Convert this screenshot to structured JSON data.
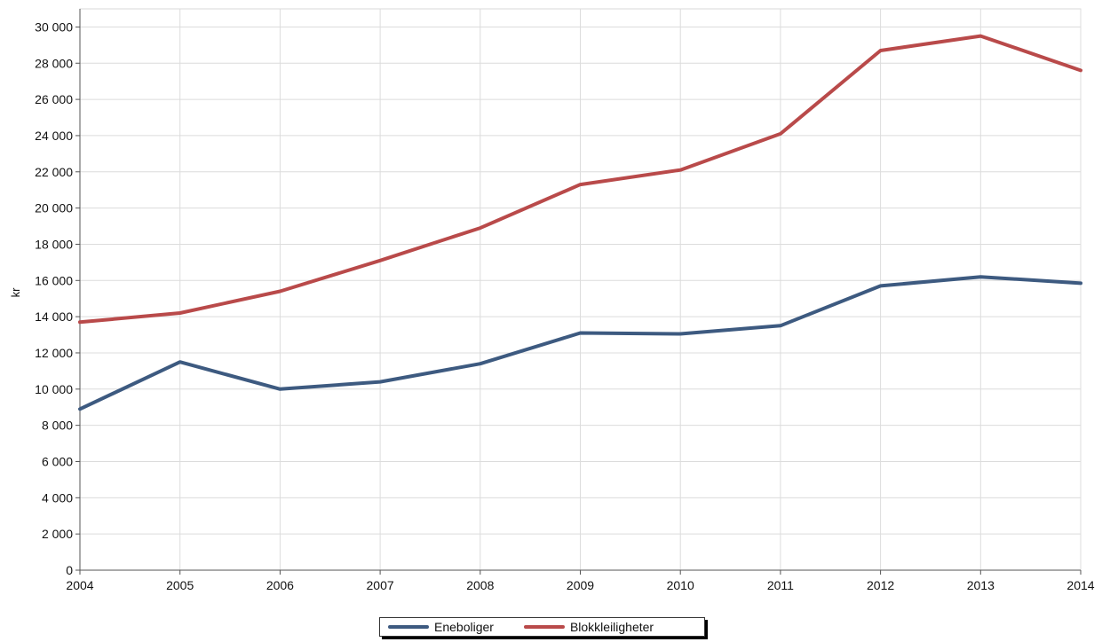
{
  "chart_data": {
    "type": "line",
    "title": "",
    "xlabel": "",
    "ylabel": "kr",
    "categories": [
      "2004",
      "2005",
      "2006",
      "2007",
      "2008",
      "2009",
      "2010",
      "2011",
      "2012",
      "2013",
      "2014"
    ],
    "yticks": [
      "0",
      "2 000",
      "4 000",
      "6 000",
      "8 000",
      "10 000",
      "12 000",
      "14 000",
      "16 000",
      "18 000",
      "20 000",
      "22 000",
      "24 000",
      "26 000",
      "28 000",
      "30 000"
    ],
    "ylim": [
      0,
      31000
    ],
    "grid": true,
    "legend_position": "bottom",
    "series": [
      {
        "name": "Eneboliger",
        "color": "#3d5a80",
        "values": [
          8900,
          11500,
          10000,
          10400,
          11400,
          13100,
          13050,
          13500,
          15700,
          16200,
          15850
        ]
      },
      {
        "name": "Blokkleiligheter",
        "color": "#b94a4a",
        "values": [
          13700,
          14200,
          15400,
          17100,
          18900,
          21300,
          22100,
          24100,
          28700,
          29500,
          27600
        ]
      }
    ]
  }
}
